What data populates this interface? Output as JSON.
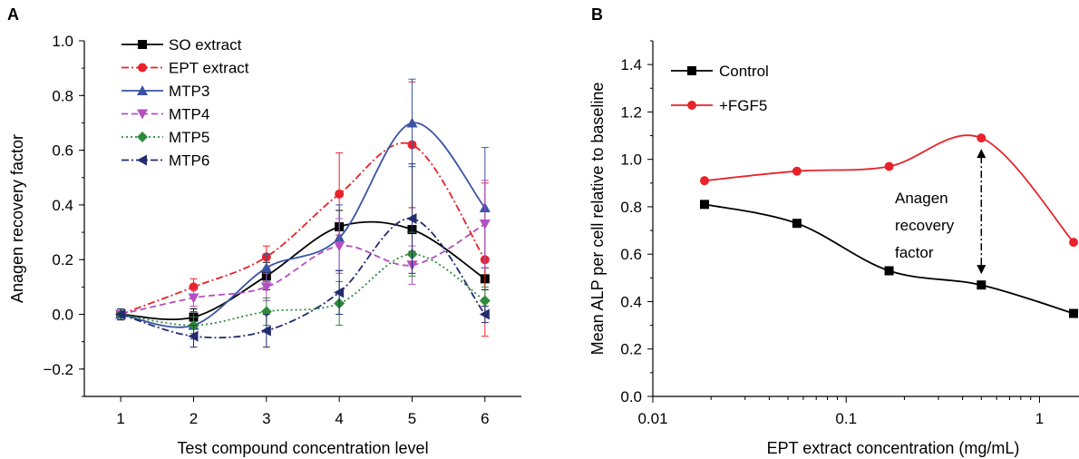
{
  "figure": {
    "panel_a_label": "A",
    "panel_b_label": "B"
  },
  "chart_data": [
    {
      "type": "line",
      "panel": "A",
      "xlabel": "Test compound concentration level",
      "ylabel": "Anagen recovery factor",
      "categories": [
        "1",
        "2",
        "3",
        "4",
        "5",
        "6"
      ],
      "x": [
        1,
        2,
        3,
        4,
        5,
        6
      ],
      "xlim": [
        0.5,
        6.5
      ],
      "ylim": [
        -0.3,
        1.0
      ],
      "yticks": [
        "−0.2",
        "0.0",
        "0.2",
        "0.4",
        "0.6",
        "0.8",
        "1.0"
      ],
      "ytick_values": [
        -0.2,
        0.0,
        0.2,
        0.4,
        0.6,
        0.8,
        1.0
      ],
      "legend_position": "top-left",
      "grid": false,
      "series": [
        {
          "name": "SO extract",
          "color": "#000000",
          "marker": "square",
          "dash": "solid",
          "values": [
            0.0,
            -0.01,
            0.14,
            0.32,
            0.31,
            0.13
          ],
          "errors": [
            0.02,
            0.03,
            0.05,
            0.06,
            0.08,
            0.04
          ]
        },
        {
          "name": "EPT extract",
          "color": "#e8232a",
          "marker": "circle",
          "dash": "dashdot",
          "values": [
            0.0,
            0.1,
            0.21,
            0.44,
            0.62,
            0.2
          ],
          "errors": [
            0.02,
            0.03,
            0.04,
            0.15,
            0.23,
            0.28
          ]
        },
        {
          "name": "MTP3",
          "color": "#3a53a4",
          "marker": "triangle-up",
          "dash": "solid",
          "values": [
            0.0,
            -0.04,
            0.17,
            0.28,
            0.7,
            0.39
          ],
          "errors": [
            0.02,
            0.05,
            0.05,
            0.12,
            0.16,
            0.22
          ]
        },
        {
          "name": "MTP4",
          "color": "#b34fbf",
          "marker": "triangle-down",
          "dash": "dashed",
          "values": [
            0.0,
            0.06,
            0.1,
            0.25,
            0.18,
            0.33
          ],
          "errors": [
            0.02,
            0.03,
            0.05,
            0.1,
            0.07,
            0.16
          ]
        },
        {
          "name": "MTP5",
          "color": "#2e8b3a",
          "marker": "diamond",
          "dash": "dotted",
          "values": [
            0.0,
            -0.04,
            0.01,
            0.04,
            0.22,
            0.05
          ],
          "errors": [
            0.02,
            0.03,
            0.05,
            0.08,
            0.08,
            0.05
          ]
        },
        {
          "name": "MTP6",
          "color": "#232c6e",
          "marker": "triangle-left",
          "dash": "dashdot",
          "values": [
            0.0,
            -0.08,
            -0.06,
            0.08,
            0.35,
            0.0
          ],
          "errors": [
            0.02,
            0.04,
            0.06,
            0.08,
            0.2,
            0.03
          ]
        }
      ]
    },
    {
      "type": "line",
      "panel": "B",
      "xlabel": "EPT extract concentration (mg/mL)",
      "ylabel": "Mean ALP per cell relative to baseline",
      "xscale": "log",
      "xlim": [
        0.01,
        1.6
      ],
      "xticks": [
        "0.01",
        "0.1",
        "1"
      ],
      "xtick_values": [
        0.01,
        0.1,
        1
      ],
      "ylim": [
        0.0,
        1.5
      ],
      "yticks": [
        "0.0",
        "0.2",
        "0.4",
        "0.6",
        "0.8",
        "1.0",
        "1.2",
        "1.4"
      ],
      "ytick_values": [
        0.0,
        0.2,
        0.4,
        0.6,
        0.8,
        1.0,
        1.2,
        1.4
      ],
      "legend_position": "top-left",
      "grid": false,
      "series": [
        {
          "name": "Control",
          "color": "#000000",
          "marker": "square",
          "x": [
            0.0185,
            0.0556,
            0.1667,
            0.5,
            1.5
          ],
          "values": [
            0.81,
            0.73,
            0.53,
            0.47,
            0.35
          ]
        },
        {
          "name": "+FGF5",
          "color": "#e8232a",
          "marker": "circle",
          "x": [
            0.0185,
            0.0556,
            0.1667,
            0.5,
            1.5
          ],
          "values": [
            0.91,
            0.95,
            0.97,
            1.09,
            0.65
          ]
        }
      ],
      "annotation": {
        "lines": [
          "Anagen",
          "recovery",
          "factor"
        ],
        "x": 0.5,
        "from": 0.47,
        "to": 1.09
      }
    }
  ]
}
